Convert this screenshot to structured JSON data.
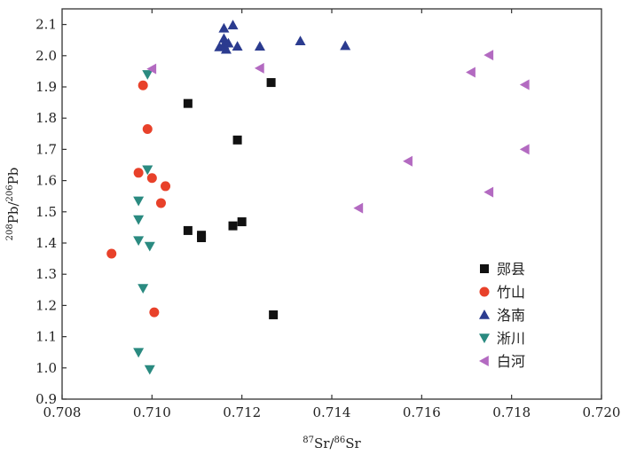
{
  "chart_data": {
    "type": "scatter",
    "xlabel": {
      "iso": "87",
      "el": "Sr",
      "slash": "/",
      "iso2": "86",
      "el2": "Sr"
    },
    "ylabel": {
      "iso": "208",
      "el": "Pb",
      "slash": "/",
      "iso2": "206",
      "el2": "Pb"
    },
    "xlim": [
      0.708,
      0.72
    ],
    "ylim": [
      0.9,
      2.15
    ],
    "x_ticks": [
      "0.708",
      "0.710",
      "0.712",
      "0.714",
      "0.716",
      "0.718",
      "0.720"
    ],
    "y_ticks": [
      "0.9",
      "1.0",
      "1.1",
      "1.2",
      "1.3",
      "1.4",
      "1.5",
      "1.6",
      "1.7",
      "1.8",
      "1.9",
      "2.0",
      "2.1"
    ],
    "legend_position": "right",
    "grid": false,
    "series": [
      {
        "name": "郧县",
        "marker": "square",
        "color": "#111111",
        "points": [
          [
            0.7108,
            1.847
          ],
          [
            0.71265,
            1.914
          ],
          [
            0.7119,
            1.73
          ],
          [
            0.7108,
            1.44
          ],
          [
            0.7111,
            1.425
          ],
          [
            0.7111,
            1.417
          ],
          [
            0.7118,
            1.455
          ],
          [
            0.712,
            1.468
          ],
          [
            0.7127,
            1.17
          ]
        ]
      },
      {
        "name": "竹山",
        "marker": "circle",
        "color": "#e8412a",
        "points": [
          [
            0.7098,
            1.905
          ],
          [
            0.7099,
            1.765
          ],
          [
            0.7097,
            1.625
          ],
          [
            0.71,
            1.608
          ],
          [
            0.7103,
            1.582
          ],
          [
            0.7102,
            1.528
          ],
          [
            0.7091,
            1.366
          ],
          [
            0.71005,
            1.178
          ]
        ]
      },
      {
        "name": "洛南",
        "marker": "triangle-up",
        "color": "#2b3b8f",
        "points": [
          [
            0.7116,
            2.088
          ],
          [
            0.7118,
            2.098
          ],
          [
            0.7116,
            2.055
          ],
          [
            0.7116,
            2.035
          ],
          [
            0.7117,
            2.04
          ],
          [
            0.71165,
            2.02
          ],
          [
            0.7115,
            2.028
          ],
          [
            0.7119,
            2.03
          ],
          [
            0.7124,
            2.03
          ],
          [
            0.7133,
            2.047
          ],
          [
            0.7143,
            2.032
          ]
        ]
      },
      {
        "name": "淅川",
        "marker": "triangle-down",
        "color": "#2a8a80",
        "points": [
          [
            0.7099,
            1.94
          ],
          [
            0.7099,
            1.635
          ],
          [
            0.7097,
            1.535
          ],
          [
            0.7097,
            1.475
          ],
          [
            0.7097,
            1.408
          ],
          [
            0.70995,
            1.39
          ],
          [
            0.7098,
            1.255
          ],
          [
            0.7097,
            1.05
          ],
          [
            0.70995,
            0.995
          ]
        ]
      },
      {
        "name": "白河",
        "marker": "triangle-left",
        "color": "#b36ac1",
        "points": [
          [
            0.71,
            1.958
          ],
          [
            0.7124,
            1.96
          ],
          [
            0.7171,
            1.947
          ],
          [
            0.7175,
            2.002
          ],
          [
            0.7183,
            1.907
          ],
          [
            0.7157,
            1.662
          ],
          [
            0.7183,
            1.7
          ],
          [
            0.7175,
            1.563
          ],
          [
            0.7146,
            1.512
          ]
        ]
      }
    ]
  }
}
